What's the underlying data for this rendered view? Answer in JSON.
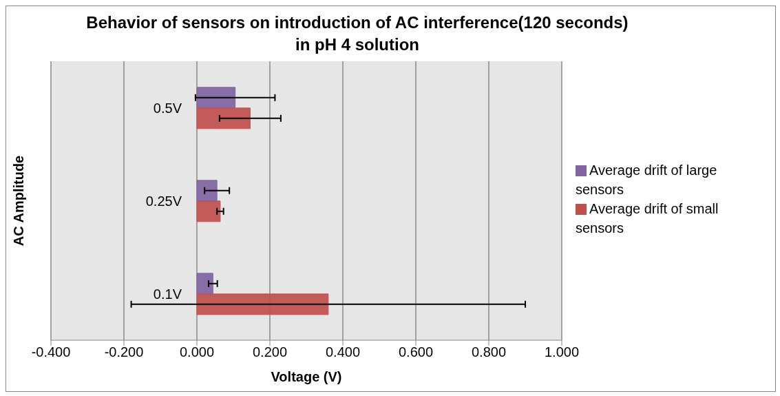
{
  "chart_data": {
    "type": "bar",
    "orientation": "horizontal",
    "title": "Behavior of sensors on introduction of AC interference(120 seconds) in pH 4 solution",
    "xlabel": "Voltage (V)",
    "ylabel": "AC Amplitude",
    "categories": [
      "0.5V",
      "0.25V",
      "0.1V"
    ],
    "series": [
      {
        "name": "Average drift of large sensors",
        "color": "#8064a2",
        "values": [
          0.105,
          0.055,
          0.044
        ],
        "errors": [
          0.109,
          0.034,
          0.012
        ]
      },
      {
        "name": "Average drift of small sensors",
        "color": "#c0504d",
        "values": [
          0.146,
          0.064,
          0.36
        ],
        "errors": [
          0.084,
          0.009,
          0.54
        ]
      }
    ],
    "xlim": [
      -0.4,
      1.0
    ],
    "xticks": [
      {
        "value": -0.4,
        "label": "-0.400"
      },
      {
        "value": -0.2,
        "label": "-0.200"
      },
      {
        "value": 0,
        "label": "0.000"
      },
      {
        "value": 0.2,
        "label": "0.200"
      },
      {
        "value": 0.4,
        "label": "0.400"
      },
      {
        "value": 0.6,
        "label": "0.600"
      },
      {
        "value": 0.8,
        "label": "0.800"
      },
      {
        "value": 1.0,
        "label": "1.000"
      }
    ],
    "grid": "x",
    "legend": "right"
  }
}
